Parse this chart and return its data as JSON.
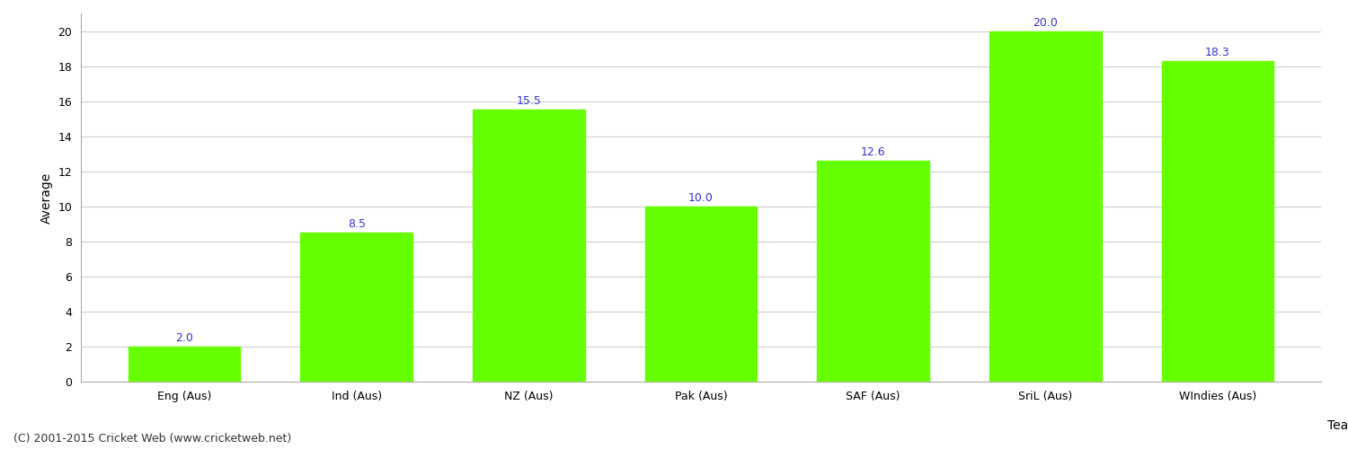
{
  "categories": [
    "Eng (Aus)",
    "Ind (Aus)",
    "NZ (Aus)",
    "Pak (Aus)",
    "SAF (Aus)",
    "SriL (Aus)",
    "WIndies (Aus)"
  ],
  "values": [
    2.0,
    8.5,
    15.5,
    10.0,
    12.6,
    20.0,
    18.3
  ],
  "bar_color": "#66ff00",
  "bar_edge_color": "#66ff00",
  "xlabel": "Team",
  "ylabel": "Average",
  "ylim": [
    0,
    21
  ],
  "yticks": [
    0,
    2,
    4,
    6,
    8,
    10,
    12,
    14,
    16,
    18,
    20
  ],
  "label_color": "#3333cc",
  "label_fontsize": 9,
  "axis_label_fontsize": 10,
  "tick_fontsize": 9,
  "grid_color": "#cccccc",
  "background_color": "#ffffff",
  "footer_text": "(C) 2001-2015 Cricket Web (www.cricketweb.net)",
  "footer_fontsize": 9,
  "footer_color": "#333333"
}
